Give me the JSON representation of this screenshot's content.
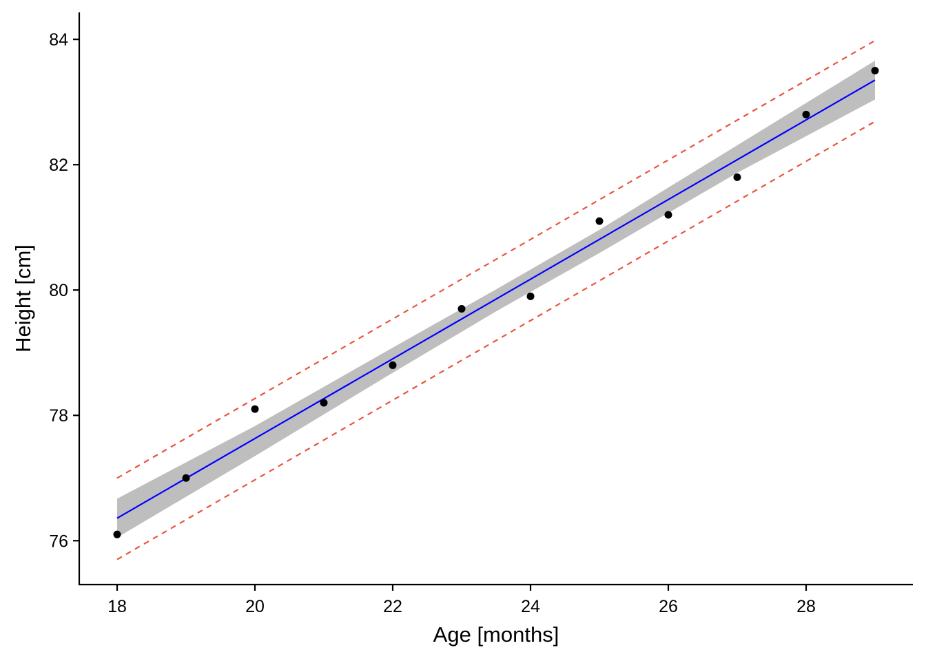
{
  "chart_data": {
    "type": "scatter",
    "title": "",
    "xlabel": "Age [months]",
    "ylabel": "Height [cm]",
    "xlim": [
      17.45,
      29.55
    ],
    "ylim": [
      75.3,
      84.43
    ],
    "xticks": [
      18,
      20,
      22,
      24,
      26,
      28
    ],
    "yticks": [
      76,
      78,
      80,
      82,
      84
    ],
    "grid": false,
    "legend": "none",
    "points": {
      "x": [
        18,
        19,
        20,
        21,
        22,
        23,
        24,
        25,
        26,
        27,
        28,
        29
      ],
      "y": [
        76.1,
        77.0,
        78.1,
        78.2,
        78.8,
        79.7,
        79.9,
        81.1,
        81.2,
        81.8,
        82.8,
        83.5
      ],
      "color": "#000000"
    },
    "fit_line": {
      "x_start": 18,
      "x_end": 29,
      "y_start": 76.36,
      "y_end": 83.35,
      "color": "#0000FF"
    },
    "confidence_band": {
      "x": [
        18,
        20,
        22,
        23.5,
        25,
        27,
        29
      ],
      "lower": [
        76.05,
        77.35,
        78.68,
        79.66,
        80.59,
        81.87,
        83.04
      ],
      "upper": [
        76.67,
        77.83,
        79.08,
        80.01,
        80.96,
        82.31,
        83.66
      ],
      "color": "#BEBEBE"
    },
    "prediction_interval": {
      "x_start": 18,
      "x_end": 29,
      "upper_start": 77.0,
      "upper_end": 83.98,
      "lower_start": 75.7,
      "lower_end": 82.69,
      "color": "#E8553E"
    }
  }
}
